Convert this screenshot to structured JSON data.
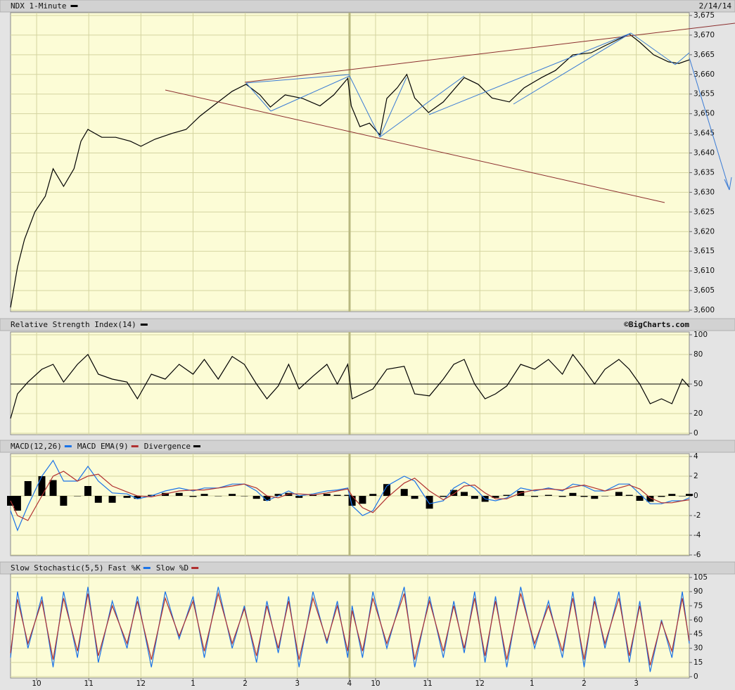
{
  "chart_data": [
    {
      "type": "line",
      "title": "NDX 1-Minute",
      "date": "2/14/14",
      "color": "#000000",
      "x": [
        0,
        8,
        16,
        28,
        40,
        49,
        61,
        73,
        81,
        89,
        105,
        121,
        138,
        150,
        166,
        186,
        202,
        218,
        239,
        255,
        271,
        287,
        299,
        316,
        336,
        356,
        372,
        388,
        392,
        402,
        413,
        425,
        433,
        445,
        456,
        465,
        481,
        498,
        522,
        538,
        554,
        574,
        591,
        611,
        627,
        647,
        668,
        684,
        700,
        712,
        724,
        740,
        757,
        769,
        781
      ],
      "values": [
        3600.7,
        3611,
        3618,
        3625,
        3629,
        3636,
        3631.5,
        3636,
        3643,
        3646,
        3644,
        3644,
        3643,
        3641.7,
        3643.5,
        3645,
        3646,
        3649.4,
        3653,
        3655.7,
        3657.5,
        3654.8,
        3651.7,
        3654.8,
        3653.9,
        3652,
        3654.8,
        3659,
        3652,
        3646.7,
        3647.6,
        3644.6,
        3653.9,
        3656.6,
        3660,
        3654,
        3650.3,
        3653,
        3659.2,
        3657.5,
        3654,
        3653,
        3656.6,
        3659.2,
        3661,
        3665,
        3665.5,
        3667.3,
        3669,
        3670.3,
        3668.2,
        3665,
        3663.2,
        3662.8,
        3663.7
      ],
      "xlim": [
        0,
        781
      ],
      "xticks": [
        30,
        90,
        150,
        210,
        270,
        330,
        390,
        420,
        480,
        540,
        600,
        660,
        720
      ],
      "ylim": [
        3600,
        3675
      ],
      "yticks": [
        {
          "value": 3600,
          "label": "3,600"
        },
        {
          "value": 3605,
          "label": "3,605"
        },
        {
          "value": 3610,
          "label": "3,610"
        },
        {
          "value": 3615,
          "label": "3,615"
        },
        {
          "value": 3620,
          "label": "3,620"
        },
        {
          "value": 3625,
          "label": "3,625"
        },
        {
          "value": 3630,
          "label": "3,630"
        },
        {
          "value": 3635,
          "label": "3,635"
        },
        {
          "value": 3640,
          "label": "3,640"
        },
        {
          "value": 3645,
          "label": "3,645"
        },
        {
          "value": 3650,
          "label": "3,650"
        },
        {
          "value": 3655,
          "label": "3,655"
        },
        {
          "value": 3660,
          "label": "3,660"
        },
        {
          "value": 3665,
          "label": "3,665"
        },
        {
          "value": 3670,
          "label": "3,670"
        },
        {
          "value": 3675,
          "label": "3,675"
        }
      ]
    },
    {
      "type": "line",
      "title": "Relative Strength Index(14)",
      "credit": "©BigCharts.com",
      "color": "#000000",
      "x": [
        0,
        8,
        20,
        36,
        49,
        61,
        77,
        89,
        101,
        117,
        134,
        146,
        162,
        178,
        194,
        210,
        223,
        239,
        255,
        269,
        283,
        295,
        308,
        320,
        332,
        348,
        364,
        376,
        388,
        393,
        405,
        417,
        433,
        453,
        465,
        482,
        498,
        510,
        522,
        534,
        546,
        558,
        571,
        587,
        603,
        619,
        635,
        647,
        660,
        672,
        684,
        700,
        712,
        724,
        736,
        749,
        761,
        773,
        781
      ],
      "values": [
        15,
        40,
        52,
        65,
        70,
        52,
        70,
        80,
        60,
        55,
        52,
        35,
        60,
        55,
        70,
        60,
        75,
        55,
        78,
        70,
        50,
        35,
        48,
        70,
        45,
        58,
        70,
        50,
        70,
        35,
        40,
        45,
        65,
        68,
        40,
        38,
        55,
        70,
        75,
        50,
        35,
        40,
        48,
        70,
        65,
        75,
        60,
        80,
        65,
        50,
        65,
        75,
        65,
        50,
        30,
        35,
        30,
        55,
        47
      ],
      "hline": 50,
      "xlim": [
        0,
        781
      ],
      "xticks": [
        30,
        90,
        150,
        210,
        270,
        330,
        390,
        420,
        480,
        540,
        600,
        660,
        720
      ],
      "ylim": [
        0,
        100
      ],
      "yticks": [
        0,
        20,
        50,
        80,
        100
      ]
    },
    {
      "type": "line",
      "title": "",
      "x": [
        0,
        8,
        20,
        36,
        49,
        61,
        77,
        89,
        101,
        117,
        134,
        146,
        162,
        178,
        194,
        210,
        223,
        239,
        255,
        269,
        283,
        295,
        308,
        320,
        332,
        348,
        364,
        376,
        388,
        393,
        405,
        417,
        433,
        453,
        465,
        482,
        498,
        510,
        522,
        534,
        546,
        558,
        571,
        587,
        603,
        619,
        635,
        647,
        660,
        672,
        684,
        700,
        712,
        724,
        736,
        749,
        761,
        773,
        781
      ],
      "series": [
        {
          "name": "MACD(12,26)",
          "color": "#1a73e8",
          "values": [
            -1.5,
            -3.5,
            -1,
            2,
            3.6,
            1.5,
            1.5,
            3,
            1.5,
            0.3,
            0.2,
            -0.3,
            0,
            0.5,
            0.8,
            0.5,
            0.8,
            0.8,
            1.2,
            1.2,
            0.5,
            -0.5,
            0,
            0.5,
            0,
            0.2,
            0.5,
            0.6,
            0.8,
            -1,
            -2,
            -1.5,
            1,
            2,
            1.5,
            -0.8,
            -0.5,
            0.8,
            1.4,
            0.8,
            -0.3,
            -0.5,
            -0.2,
            0.8,
            0.5,
            0.8,
            0.5,
            1.2,
            1,
            0.5,
            0.5,
            1.2,
            1.2,
            0.2,
            -0.8,
            -0.8,
            -0.5,
            -0.5,
            -0.2
          ]
        },
        {
          "name": "MACD EMA(9)",
          "color": "#b03030",
          "values": [
            -0.5,
            -2,
            -2.5,
            0,
            2,
            2.5,
            1.5,
            2,
            2.2,
            1,
            0.4,
            0,
            -0.1,
            0.2,
            0.5,
            0.6,
            0.6,
            0.8,
            1,
            1.2,
            0.8,
            0,
            -0.2,
            0.2,
            0.2,
            0.1,
            0.3,
            0.5,
            0.7,
            0,
            -1.2,
            -1.7,
            -0.2,
            1.3,
            1.8,
            0.5,
            -0.4,
            0.2,
            1,
            1.1,
            0.3,
            -0.3,
            -0.3,
            0.3,
            0.6,
            0.7,
            0.6,
            0.9,
            1.1,
            0.8,
            0.5,
            0.8,
            1.1,
            0.7,
            -0.2,
            -0.7,
            -0.7,
            -0.5,
            -0.4
          ]
        },
        {
          "name": "Divergence",
          "color": "#000000",
          "type": "bar",
          "values": [
            -1,
            -1.5,
            1.5,
            2,
            1.6,
            -1,
            0,
            1,
            -0.7,
            -0.7,
            -0.2,
            -0.3,
            0.1,
            0.3,
            0.3,
            -0.1,
            0.2,
            0,
            0.2,
            0,
            -0.3,
            -0.5,
            0.2,
            0.3,
            -0.2,
            0.1,
            0.2,
            0.1,
            0.1,
            -1,
            -0.8,
            0.2,
            1.2,
            0.7,
            -0.3,
            -1.3,
            -0.1,
            0.6,
            0.4,
            -0.3,
            -0.6,
            -0.2,
            0.1,
            0.5,
            -0.1,
            0.1,
            -0.1,
            0.3,
            -0.1,
            -0.3,
            0,
            0.4,
            0.1,
            -0.5,
            -0.6,
            -0.1,
            0.2,
            0,
            0.2
          ]
        }
      ],
      "xlim": [
        0,
        781
      ],
      "xticks": [
        30,
        90,
        150,
        210,
        270,
        330,
        390,
        420,
        480,
        540,
        600,
        660,
        720
      ],
      "ylim": [
        -6,
        4
      ],
      "yticks": [
        -6,
        -4,
        -2,
        0,
        2,
        4
      ]
    },
    {
      "type": "line",
      "title": "Slow Stochastic(5,5)",
      "x": [
        0,
        8,
        20,
        36,
        49,
        61,
        77,
        89,
        101,
        117,
        134,
        146,
        162,
        178,
        194,
        210,
        223,
        239,
        255,
        269,
        283,
        295,
        308,
        320,
        332,
        348,
        364,
        376,
        388,
        393,
        405,
        417,
        433,
        453,
        465,
        482,
        498,
        510,
        522,
        534,
        546,
        558,
        571,
        587,
        603,
        619,
        635,
        647,
        660,
        672,
        684,
        700,
        712,
        724,
        736,
        749,
        761,
        773,
        781
      ],
      "series": [
        {
          "name": "Fast %K",
          "color": "#1a73e8",
          "values": [
            20,
            90,
            30,
            85,
            10,
            90,
            20,
            95,
            15,
            80,
            30,
            85,
            10,
            90,
            40,
            85,
            20,
            95,
            30,
            75,
            15,
            80,
            25,
            85,
            10,
            90,
            35,
            80,
            20,
            75,
            20,
            90,
            30,
            95,
            10,
            85,
            20,
            80,
            25,
            90,
            15,
            85,
            10,
            95,
            30,
            80,
            20,
            90,
            10,
            85,
            30,
            90,
            15,
            80,
            5,
            60,
            20,
            90,
            35
          ]
        },
        {
          "name": "Slow %D",
          "color": "#b03030",
          "values": [
            25,
            82,
            35,
            80,
            18,
            83,
            27,
            88,
            22,
            75,
            35,
            80,
            18,
            83,
            43,
            80,
            27,
            88,
            35,
            72,
            22,
            75,
            30,
            80,
            18,
            83,
            38,
            75,
            27,
            70,
            27,
            83,
            35,
            88,
            18,
            80,
            27,
            75,
            30,
            83,
            22,
            80,
            18,
            88,
            35,
            75,
            27,
            83,
            18,
            80,
            35,
            83,
            22,
            75,
            12,
            58,
            27,
            83,
            38
          ]
        }
      ],
      "xlim": [
        0,
        781
      ],
      "xticks": [
        {
          "value": 30,
          "label": "10"
        },
        {
          "value": 90,
          "label": "11"
        },
        {
          "value": 150,
          "label": "12"
        },
        {
          "value": 210,
          "label": "1"
        },
        {
          "value": 270,
          "label": "2"
        },
        {
          "value": 330,
          "label": "3"
        },
        {
          "value": 390,
          "label": "4"
        },
        {
          "value": 420,
          "label": "10"
        },
        {
          "value": 480,
          "label": "11"
        },
        {
          "value": 540,
          "label": "12"
        },
        {
          "value": 600,
          "label": "1"
        },
        {
          "value": 660,
          "label": "2"
        },
        {
          "value": 720,
          "label": "3"
        }
      ],
      "ylim": [
        0,
        105
      ],
      "yticks": [
        0,
        15,
        30,
        45,
        60,
        75,
        90,
        105
      ]
    }
  ]
}
